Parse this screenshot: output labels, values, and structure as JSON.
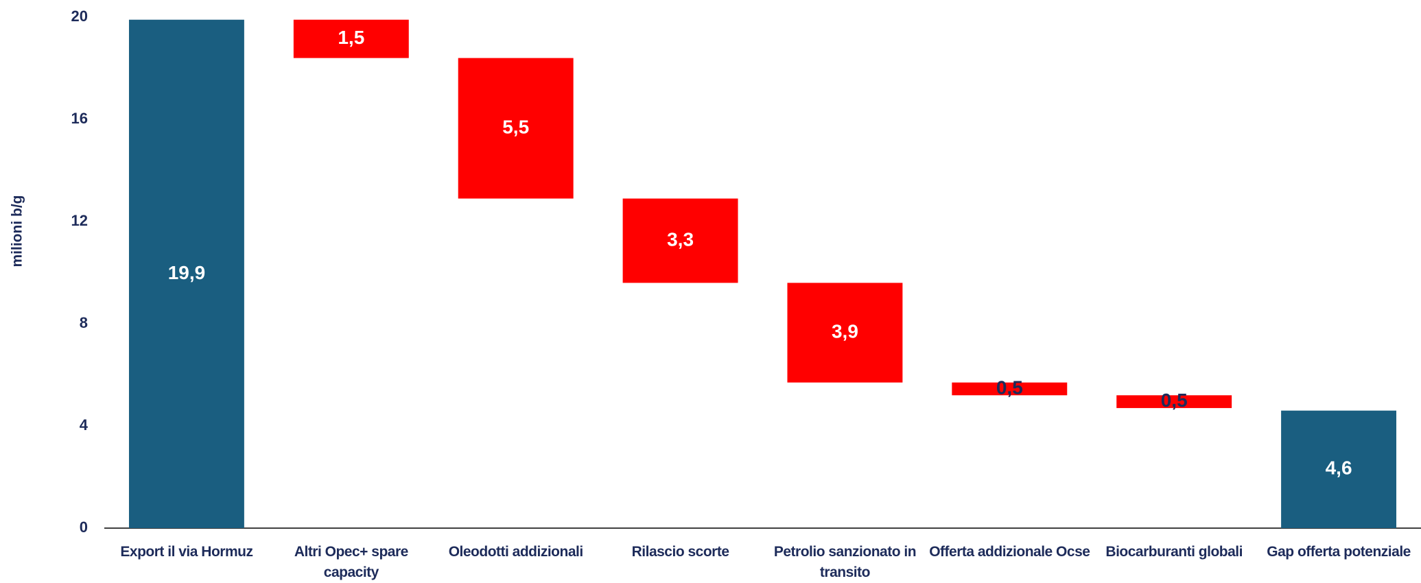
{
  "chart_data": {
    "type": "waterfall",
    "y_label": "milioni b/g",
    "categories": [
      "Export il via Hormuz",
      "Altri Opec+ spare capacity",
      "Oleodotti addizionali",
      "Rilascio scorte",
      "Petrolio sanzionato in transito",
      "Offerta addizionale Ocse",
      "Biocarburanti globali",
      "Gap offerta potenziale"
    ],
    "values": [
      19.9,
      1.5,
      5.5,
      3.3,
      3.9,
      0.5,
      0.5,
      4.6
    ],
    "value_labels": [
      "19,9",
      "1,5",
      "5,5",
      "3,3",
      "3,9",
      "0,5",
      "0,5",
      "4,6"
    ],
    "measure": [
      "total",
      "decrease",
      "decrease",
      "decrease",
      "decrease",
      "decrease",
      "decrease",
      "total"
    ],
    "colors": {
      "total": "#1a5e80",
      "decrease": "#ff0000"
    },
    "ylim": [
      0,
      20
    ],
    "yticks": [
      0,
      4,
      8,
      12,
      16,
      20
    ],
    "grid": false
  }
}
